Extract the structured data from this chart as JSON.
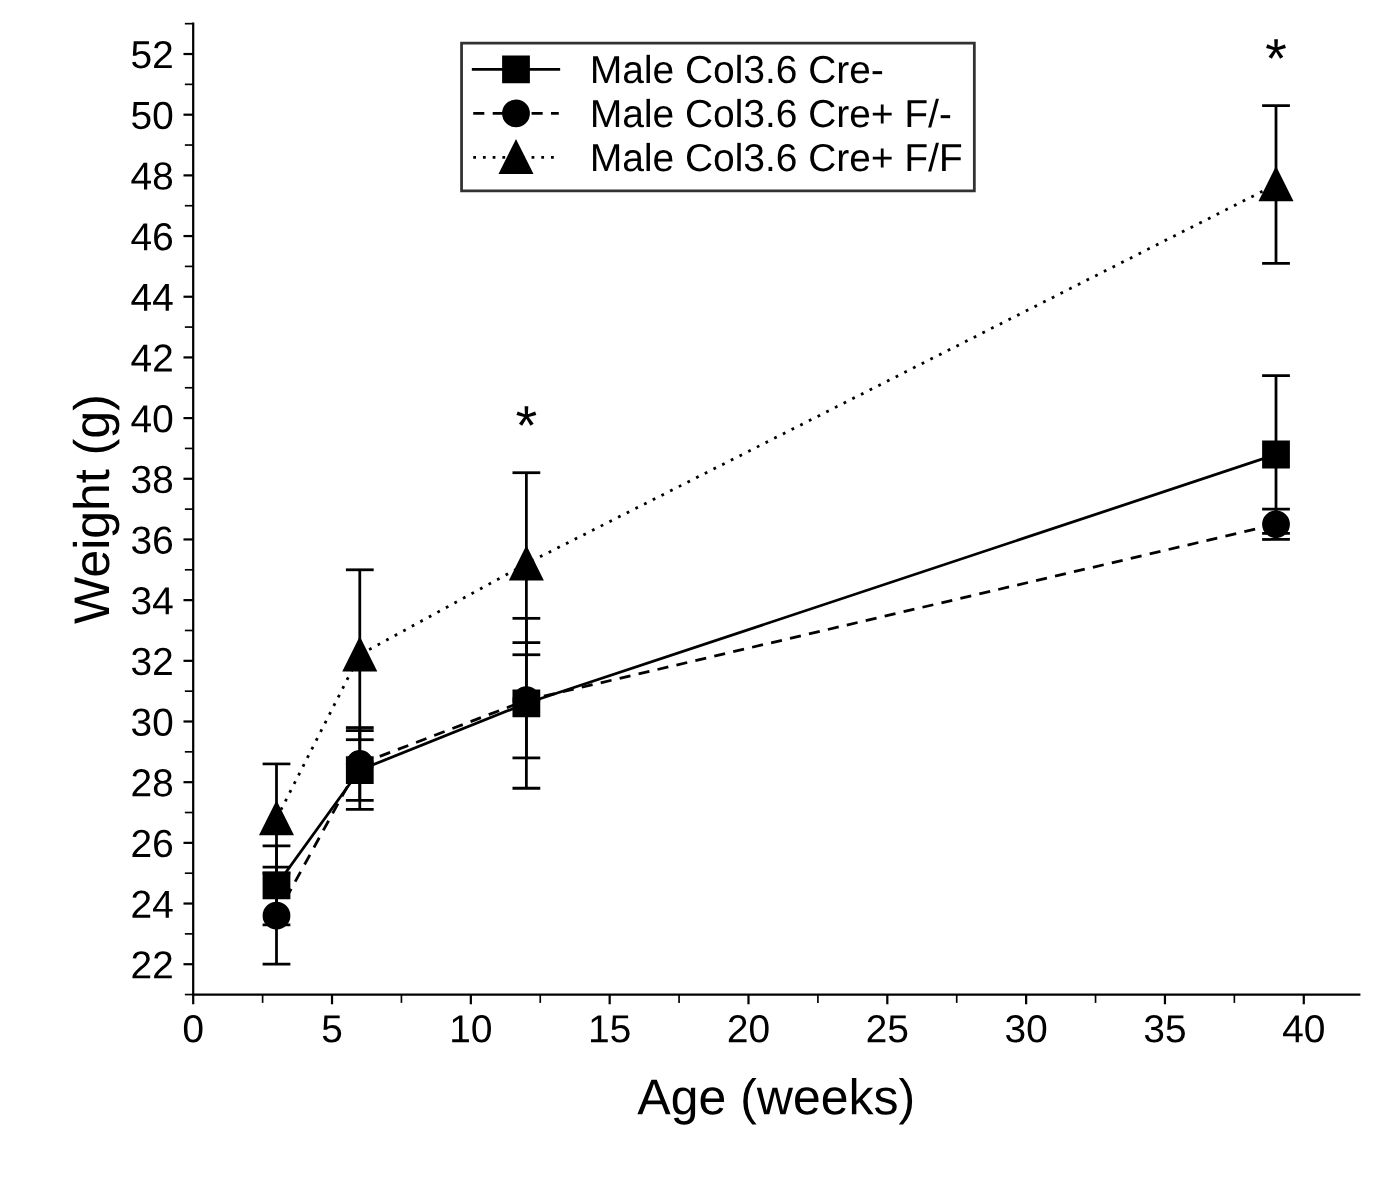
{
  "chart_data": {
    "type": "line",
    "xlabel": "Age (weeks)",
    "ylabel": "Weight (g)",
    "x": [
      3,
      6,
      12,
      39
    ],
    "series": [
      {
        "name": "Male Col3.6 Cre-",
        "color": "#000000",
        "marker": "square",
        "line_style": "solid",
        "values": [
          24.6,
          28.4,
          30.6,
          38.8
        ],
        "errors": [
          1.3,
          1.3,
          2.8,
          2.6
        ]
      },
      {
        "name": "Male Col3.6 Cre+ F/-",
        "color": "#000000",
        "marker": "circle",
        "line_style": "dashed",
        "values": [
          23.6,
          28.6,
          30.7,
          36.5
        ],
        "errors": [
          1.6,
          1.2,
          1.9,
          0.5
        ]
      },
      {
        "name": "Male Col3.6 Cre+ F/F",
        "color": "#000000",
        "marker": "triangle",
        "line_style": "dotted",
        "values": [
          26.8,
          32.2,
          35.2,
          47.7
        ],
        "errors": [
          1.8,
          2.8,
          3.0,
          2.6
        ]
      }
    ],
    "annotations": [
      {
        "text": "*",
        "x": 12,
        "y": 35.2
      },
      {
        "text": "*",
        "x": 39,
        "y": 47.7
      }
    ],
    "xlim": [
      0,
      42
    ],
    "xticks": [
      0,
      5,
      10,
      15,
      20,
      25,
      30,
      35,
      40
    ],
    "ylim": [
      21,
      53
    ],
    "yticks": [
      22,
      24,
      26,
      28,
      30,
      32,
      34,
      36,
      38,
      40,
      42,
      44,
      46,
      48,
      50,
      52
    ],
    "grid": false,
    "legend": "top"
  }
}
